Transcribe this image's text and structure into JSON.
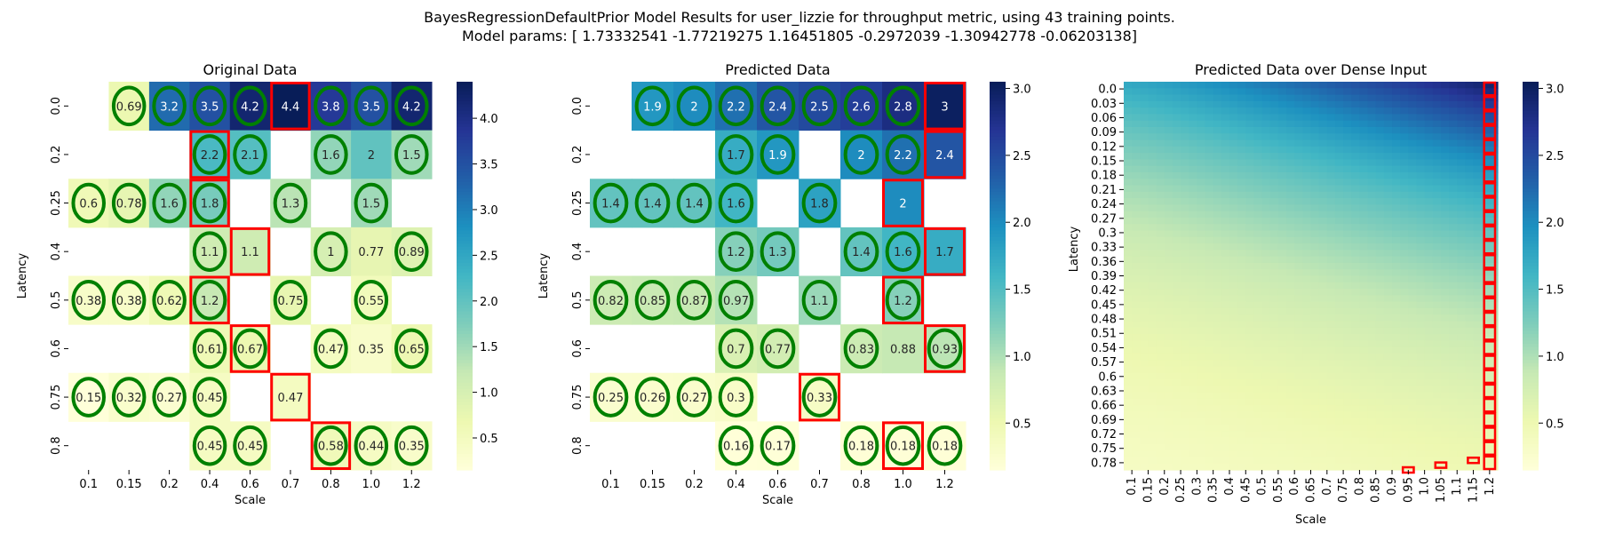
{
  "figure": {
    "title_line1": "BayesRegressionDefaultPrior Model Results for user_lizzie for throughput metric, using 43 training points.",
    "title_line2": "Model params: [ 1.73332541 -1.77219275  1.16451805 -0.2972039  -1.30942778 -0.06203138]"
  },
  "colors": {
    "green_circle": "#008000",
    "red_box": "#ff0000",
    "colormap": "YlGnBu"
  },
  "chart_data": [
    {
      "type": "heatmap",
      "title": "Original Data",
      "xlabel": "Scale",
      "ylabel": "Latency",
      "x": [
        "0.1",
        "0.15",
        "0.2",
        "0.4",
        "0.6",
        "0.7",
        "0.8",
        "1.0",
        "1.2"
      ],
      "y": [
        "0.0",
        "0.2",
        "0.25",
        "0.4",
        "0.5",
        "0.6",
        "0.75",
        "0.8"
      ],
      "values": [
        [
          null,
          0.69,
          3.2,
          3.5,
          4.2,
          4.4,
          3.8,
          3.5,
          4.2
        ],
        [
          null,
          null,
          null,
          2.2,
          2.1,
          null,
          1.6,
          2,
          1.5
        ],
        [
          0.6,
          0.78,
          1.6,
          1.8,
          null,
          1.3,
          null,
          1.5,
          null
        ],
        [
          null,
          null,
          null,
          1.1,
          1.1,
          null,
          1,
          0.77,
          0.89
        ],
        [
          0.38,
          0.38,
          0.62,
          1.2,
          null,
          0.75,
          null,
          0.55,
          null
        ],
        [
          null,
          null,
          null,
          0.61,
          0.67,
          null,
          0.47,
          0.35,
          0.65
        ],
        [
          0.15,
          0.32,
          0.27,
          0.45,
          null,
          0.47,
          null,
          null,
          null
        ],
        [
          null,
          null,
          null,
          0.45,
          0.45,
          null,
          0.58,
          0.44,
          0.35
        ]
      ],
      "circled_cells": [
        [
          0,
          1
        ],
        [
          0,
          2
        ],
        [
          0,
          3
        ],
        [
          0,
          4
        ],
        [
          0,
          6
        ],
        [
          0,
          7
        ],
        [
          0,
          8
        ],
        [
          1,
          3
        ],
        [
          1,
          4
        ],
        [
          1,
          6
        ],
        [
          1,
          8
        ],
        [
          2,
          0
        ],
        [
          2,
          1
        ],
        [
          2,
          2
        ],
        [
          2,
          3
        ],
        [
          2,
          5
        ],
        [
          2,
          7
        ],
        [
          3,
          3
        ],
        [
          3,
          6
        ],
        [
          3,
          8
        ],
        [
          4,
          0
        ],
        [
          4,
          1
        ],
        [
          4,
          2
        ],
        [
          4,
          3
        ],
        [
          4,
          5
        ],
        [
          4,
          7
        ],
        [
          5,
          3
        ],
        [
          5,
          4
        ],
        [
          5,
          6
        ],
        [
          5,
          8
        ],
        [
          6,
          0
        ],
        [
          6,
          1
        ],
        [
          6,
          2
        ],
        [
          6,
          3
        ],
        [
          7,
          3
        ],
        [
          7,
          4
        ],
        [
          7,
          6
        ],
        [
          7,
          7
        ],
        [
          7,
          8
        ]
      ],
      "boxed_cells": [
        [
          0,
          5
        ],
        [
          1,
          3
        ],
        [
          2,
          3
        ],
        [
          3,
          4
        ],
        [
          4,
          3
        ],
        [
          5,
          4
        ],
        [
          6,
          5
        ],
        [
          7,
          6
        ]
      ],
      "colorbar": {
        "min": 0.15,
        "max": 4.4,
        "ticks": [
          0.5,
          1.0,
          1.5,
          2.0,
          2.5,
          3.0,
          3.5,
          4.0
        ]
      }
    },
    {
      "type": "heatmap",
      "title": "Predicted Data",
      "xlabel": "Scale",
      "ylabel": "Latency",
      "x": [
        "0.1",
        "0.15",
        "0.2",
        "0.4",
        "0.6",
        "0.7",
        "0.8",
        "1.0",
        "1.2"
      ],
      "y": [
        "0.0",
        "0.2",
        "0.25",
        "0.4",
        "0.5",
        "0.6",
        "0.75",
        "0.8"
      ],
      "values": [
        [
          null,
          1.9,
          2,
          2.2,
          2.4,
          2.5,
          2.6,
          2.8,
          3
        ],
        [
          null,
          null,
          null,
          1.7,
          1.9,
          null,
          2,
          2.2,
          2.4
        ],
        [
          1.4,
          1.4,
          1.4,
          1.6,
          null,
          1.8,
          null,
          2,
          null
        ],
        [
          null,
          null,
          null,
          1.2,
          1.3,
          null,
          1.4,
          1.6,
          1.7
        ],
        [
          0.82,
          0.85,
          0.87,
          0.97,
          null,
          1.1,
          null,
          1.2,
          null
        ],
        [
          null,
          null,
          null,
          0.7,
          0.77,
          null,
          0.83,
          0.88,
          0.93
        ],
        [
          0.25,
          0.26,
          0.27,
          0.3,
          null,
          0.33,
          null,
          null,
          null
        ],
        [
          null,
          null,
          null,
          0.16,
          0.17,
          null,
          0.18,
          0.18,
          0.18
        ]
      ],
      "circled_cells": [
        [
          0,
          1
        ],
        [
          0,
          2
        ],
        [
          0,
          3
        ],
        [
          0,
          4
        ],
        [
          0,
          5
        ],
        [
          0,
          6
        ],
        [
          0,
          7
        ],
        [
          1,
          3
        ],
        [
          1,
          4
        ],
        [
          1,
          6
        ],
        [
          1,
          7
        ],
        [
          2,
          0
        ],
        [
          2,
          1
        ],
        [
          2,
          2
        ],
        [
          2,
          3
        ],
        [
          2,
          5
        ],
        [
          3,
          3
        ],
        [
          3,
          4
        ],
        [
          3,
          6
        ],
        [
          3,
          7
        ],
        [
          4,
          0
        ],
        [
          4,
          1
        ],
        [
          4,
          2
        ],
        [
          4,
          3
        ],
        [
          4,
          5
        ],
        [
          4,
          7
        ],
        [
          5,
          3
        ],
        [
          5,
          4
        ],
        [
          5,
          6
        ],
        [
          5,
          8
        ],
        [
          6,
          0
        ],
        [
          6,
          1
        ],
        [
          6,
          2
        ],
        [
          6,
          3
        ],
        [
          6,
          5
        ],
        [
          7,
          3
        ],
        [
          7,
          4
        ],
        [
          7,
          6
        ],
        [
          7,
          7
        ],
        [
          7,
          8
        ]
      ],
      "boxed_cells": [
        [
          0,
          8
        ],
        [
          1,
          8
        ],
        [
          2,
          7
        ],
        [
          3,
          8
        ],
        [
          4,
          7
        ],
        [
          5,
          8
        ],
        [
          6,
          5
        ],
        [
          7,
          7
        ]
      ],
      "colorbar": {
        "min": 0.15,
        "max": 3.05,
        "ticks": [
          0.5,
          1.0,
          1.5,
          2.0,
          2.5,
          3.0
        ]
      }
    },
    {
      "type": "heatmap",
      "title": "Predicted Data over Dense Input",
      "xlabel": "Scale",
      "ylabel": "Latency",
      "x": [
        "0.1",
        "0.15",
        "0.2",
        "0.25",
        "0.3",
        "0.35",
        "0.4",
        "0.45",
        "0.5",
        "0.55",
        "0.6",
        "0.65",
        "0.7",
        "0.75",
        "0.8",
        "0.85",
        "0.9",
        "0.95",
        "1.0",
        "1.05",
        "1.1",
        "1.15",
        "1.2"
      ],
      "y": [
        "0.0",
        "0.03",
        "0.06",
        "0.09",
        "0.12",
        "0.15",
        "0.18",
        "0.21",
        "0.24",
        "0.27",
        "0.3",
        "0.33",
        "0.36",
        "0.39",
        "0.42",
        "0.45",
        "0.48",
        "0.51",
        "0.54",
        "0.57",
        "0.6",
        "0.63",
        "0.66",
        "0.69",
        "0.72",
        "0.75",
        "0.78"
      ],
      "value_range": [
        0.15,
        3.05
      ],
      "boxed_column_x": "1.2",
      "boxed_marks": [
        [
          "0.95",
          0.81
        ],
        [
          "1.05",
          0.8
        ],
        [
          "1.15",
          0.79
        ]
      ],
      "colorbar": {
        "min": 0.15,
        "max": 3.05,
        "ticks": [
          0.5,
          1.0,
          1.5,
          2.0,
          2.5,
          3.0
        ]
      }
    }
  ]
}
